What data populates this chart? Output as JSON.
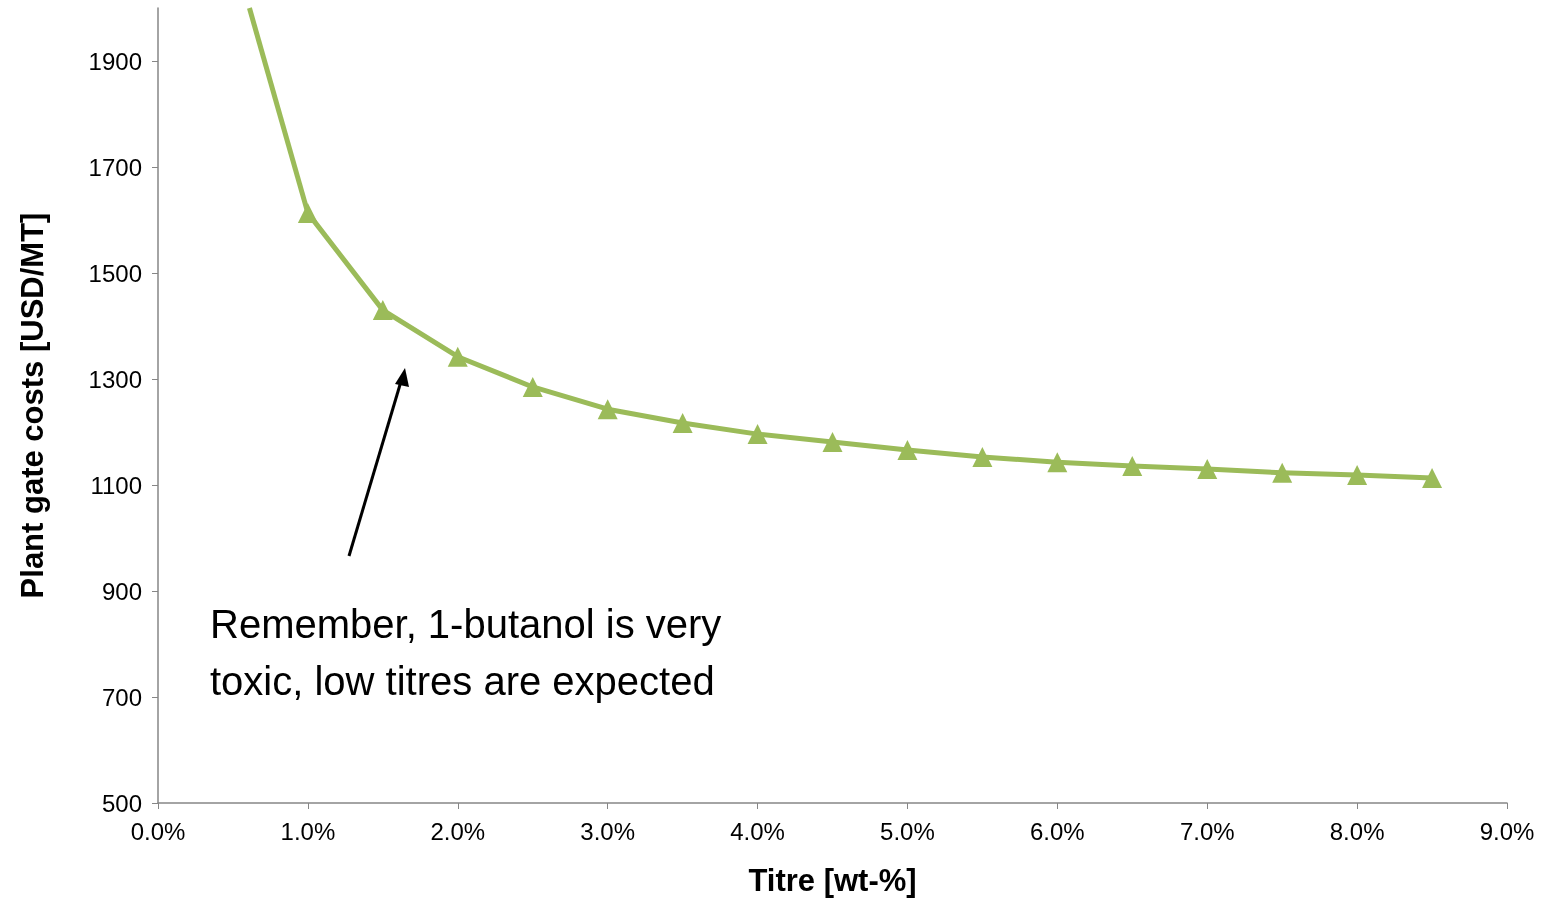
{
  "chart_data": {
    "type": "line",
    "xlabel": "Titre [wt-%]",
    "ylabel": "Plant gate costs [USD/MT]",
    "x": [
      1.0,
      1.5,
      2.0,
      2.5,
      3.0,
      3.5,
      4.0,
      4.5,
      5.0,
      5.5,
      6.0,
      6.5,
      7.0,
      7.5,
      8.0,
      8.5
    ],
    "series": [
      {
        "color": "#9bbb59",
        "values": [
          1613,
          1430,
          1342,
          1285,
          1243,
          1217,
          1196,
          1181,
          1166,
          1153,
          1143,
          1136,
          1130,
          1123,
          1119,
          1113
        ]
      },
      {
        "color": "#9bbb59",
        "x": [
          0.61,
          1.0
        ],
        "values": [
          2000,
          1613
        ],
        "marker": "none"
      }
    ],
    "xlim": [
      0,
      9
    ],
    "ylim": [
      500,
      2000
    ],
    "xticks": [
      {
        "value": 0,
        "label": "0.0%"
      },
      {
        "value": 1,
        "label": "1.0%"
      },
      {
        "value": 2,
        "label": "2.0%"
      },
      {
        "value": 3,
        "label": "3.0%"
      },
      {
        "value": 4,
        "label": "4.0%"
      },
      {
        "value": 5,
        "label": "5.0%"
      },
      {
        "value": 6,
        "label": "6.0%"
      },
      {
        "value": 7,
        "label": "7.0%"
      },
      {
        "value": 8,
        "label": "8.0%"
      },
      {
        "value": 9,
        "label": "9.0%"
      }
    ],
    "yticks": [
      500,
      700,
      900,
      1100,
      1300,
      1500,
      1700,
      1900
    ],
    "annotations": [
      "Remember, 1-butanol is very\ntoxic, low titres are expected"
    ],
    "marker": "triangle",
    "grid": false
  }
}
